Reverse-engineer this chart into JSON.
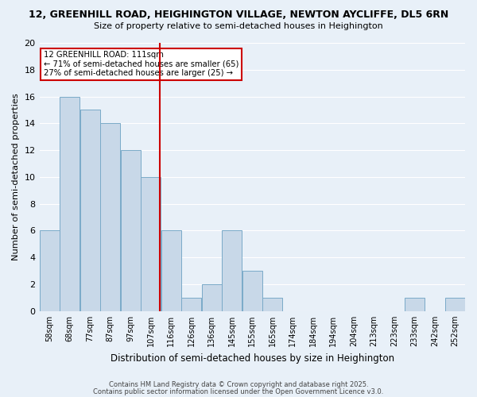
{
  "title_line1": "12, GREENHILL ROAD, HEIGHINGTON VILLAGE, NEWTON AYCLIFFE, DL5 6RN",
  "title_line2": "Size of property relative to semi-detached houses in Heighington",
  "xlabel": "Distribution of semi-detached houses by size in Heighington",
  "ylabel": "Number of semi-detached properties",
  "bin_labels": [
    "58sqm",
    "68sqm",
    "77sqm",
    "87sqm",
    "97sqm",
    "107sqm",
    "116sqm",
    "126sqm",
    "136sqm",
    "145sqm",
    "155sqm",
    "165sqm",
    "174sqm",
    "184sqm",
    "194sqm",
    "204sqm",
    "213sqm",
    "223sqm",
    "233sqm",
    "242sqm",
    "252sqm"
  ],
  "counts": [
    6,
    16,
    15,
    14,
    12,
    10,
    6,
    1,
    2,
    6,
    3,
    1,
    0,
    0,
    0,
    0,
    0,
    0,
    1,
    0,
    1
  ],
  "bar_color": "#c8d8e8",
  "bar_edgecolor": "#7aaac8",
  "ref_line_bin": 6,
  "ref_line_color": "#cc0000",
  "annotation_box_edgecolor": "#cc0000",
  "annotation_text_line1": "12 GREENHILL ROAD: 111sqm",
  "annotation_text_line2": "← 71% of semi-detached houses are smaller (65)",
  "annotation_text_line3": "27% of semi-detached houses are larger (25) →",
  "ylim": [
    0,
    20
  ],
  "yticks": [
    0,
    2,
    4,
    6,
    8,
    10,
    12,
    14,
    16,
    18,
    20
  ],
  "background_color": "#e8f0f8",
  "grid_color": "#ffffff",
  "footer_line1": "Contains HM Land Registry data © Crown copyright and database right 2025.",
  "footer_line2": "Contains public sector information licensed under the Open Government Licence v3.0."
}
